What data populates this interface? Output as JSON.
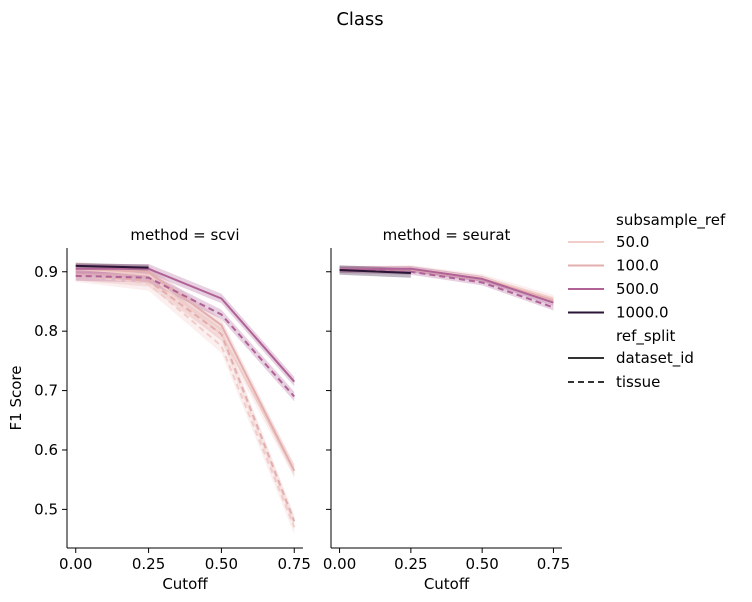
{
  "figure": {
    "title": "Class"
  },
  "legend": {
    "hue_title": "subsample_ref",
    "hue_entries": [
      {
        "label": "50.0",
        "color": "#f1cdc9"
      },
      {
        "label": "100.0",
        "color": "#e3aeae"
      },
      {
        "label": "500.0",
        "color": "#b06297"
      },
      {
        "label": "1000.0",
        "color": "#2a1537"
      }
    ],
    "style_title": "ref_split",
    "style_entries": [
      {
        "label": "dataset_id",
        "dash": "solid"
      },
      {
        "label": "tissue",
        "dash": "dashed"
      }
    ]
  },
  "chart_data": [
    {
      "type": "line",
      "title": "method = scvi",
      "xlabel": "Cutoff",
      "ylabel": "F1 Score",
      "xlim": [
        -0.03,
        0.78
      ],
      "ylim": [
        0.435,
        0.94
      ],
      "xticks": [
        0.0,
        0.25,
        0.5,
        0.75
      ],
      "xtick_labels": [
        "0.00",
        "0.25",
        "0.50",
        "0.75"
      ],
      "yticks": [
        0.5,
        0.6,
        0.7,
        0.8,
        0.9
      ],
      "ytick_labels": [
        "0.5",
        "0.6",
        "0.7",
        "0.8",
        "0.9"
      ],
      "series": [
        {
          "subsample_ref": "50.0",
          "ref_split": "dataset_id",
          "x": [
            0.0,
            0.25,
            0.5,
            0.75
          ],
          "y": [
            0.905,
            0.895,
            0.795,
            0.565
          ],
          "band": 0.012
        },
        {
          "subsample_ref": "50.0",
          "ref_split": "tissue",
          "x": [
            0.0,
            0.25,
            0.5,
            0.75
          ],
          "y": [
            0.895,
            0.88,
            0.775,
            0.47
          ],
          "band": 0.012
        },
        {
          "subsample_ref": "100.0",
          "ref_split": "dataset_id",
          "x": [
            0.0,
            0.25,
            0.5,
            0.75
          ],
          "y": [
            0.905,
            0.9,
            0.81,
            0.565
          ],
          "band": 0.01
        },
        {
          "subsample_ref": "100.0",
          "ref_split": "tissue",
          "x": [
            0.0,
            0.25,
            0.5,
            0.75
          ],
          "y": [
            0.895,
            0.885,
            0.795,
            0.48
          ],
          "band": 0.01
        },
        {
          "subsample_ref": "500.0",
          "ref_split": "dataset_id",
          "x": [
            0.0,
            0.25,
            0.5,
            0.75
          ],
          "y": [
            0.905,
            0.905,
            0.855,
            0.715
          ],
          "band": 0.008
        },
        {
          "subsample_ref": "500.0",
          "ref_split": "tissue",
          "x": [
            0.0,
            0.25,
            0.5,
            0.75
          ],
          "y": [
            0.893,
            0.89,
            0.828,
            0.69
          ],
          "band": 0.008
        },
        {
          "subsample_ref": "1000.0",
          "ref_split": "dataset_id",
          "x": [
            0.0,
            0.25
          ],
          "y": [
            0.91,
            0.907
          ],
          "band": 0.005
        }
      ]
    },
    {
      "type": "line",
      "title": "method = seurat",
      "xlabel": "Cutoff",
      "ylabel": "",
      "xlim": [
        -0.03,
        0.78
      ],
      "ylim": [
        0.435,
        0.94
      ],
      "xticks": [
        0.0,
        0.25,
        0.5,
        0.75
      ],
      "xtick_labels": [
        "0.00",
        "0.25",
        "0.50",
        "0.75"
      ],
      "yticks": [
        0.5,
        0.6,
        0.7,
        0.8,
        0.9
      ],
      "series": [
        {
          "subsample_ref": "50.0",
          "ref_split": "dataset_id",
          "x": [
            0.0,
            0.25,
            0.5,
            0.75
          ],
          "y": [
            0.904,
            0.905,
            0.89,
            0.855
          ],
          "band": 0.006
        },
        {
          "subsample_ref": "100.0",
          "ref_split": "dataset_id",
          "x": [
            0.0,
            0.25,
            0.5,
            0.75
          ],
          "y": [
            0.904,
            0.904,
            0.888,
            0.852
          ],
          "band": 0.005
        },
        {
          "subsample_ref": "500.0",
          "ref_split": "dataset_id",
          "x": [
            0.0,
            0.25,
            0.5,
            0.75
          ],
          "y": [
            0.904,
            0.905,
            0.888,
            0.848
          ],
          "band": 0.005
        },
        {
          "subsample_ref": "500.0",
          "ref_split": "tissue",
          "x": [
            0.0,
            0.25,
            0.5,
            0.75
          ],
          "y": [
            0.903,
            0.9,
            0.882,
            0.84
          ],
          "band": 0.005
        },
        {
          "subsample_ref": "1000.0",
          "ref_split": "dataset_id",
          "x": [
            0.0,
            0.25
          ],
          "y": [
            0.903,
            0.898
          ],
          "band": 0.008
        }
      ]
    }
  ]
}
